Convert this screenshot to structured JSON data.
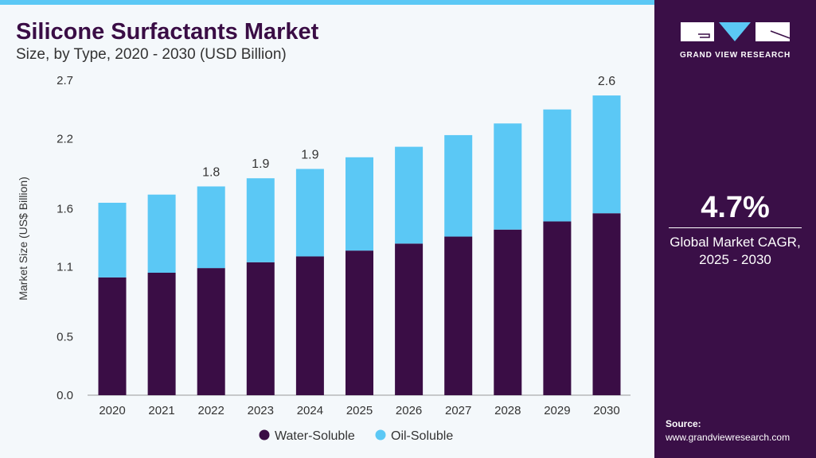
{
  "header": {
    "title": "Silicone Surfactants Market",
    "subtitle": "Size, by Type, 2020 - 2030 (USD Billion)"
  },
  "sidebar": {
    "brand": "GRAND VIEW RESEARCH",
    "cagr_value": "4.7%",
    "cagr_label_1": "Global Market CAGR,",
    "cagr_label_2": "2025 - 2030",
    "source_label": "Source:",
    "source_url": "www.grandviewresearch.com"
  },
  "colors": {
    "water_soluble": "#3a0d45",
    "oil_soluble": "#5bc8f5",
    "panel": "#3a0f47"
  },
  "chart_data": {
    "type": "bar",
    "stacked": true,
    "title": "Silicone Surfactants Market",
    "ylabel": "Market Size (US$ Billion)",
    "xlabel": "",
    "ylim": [
      0,
      2.7
    ],
    "yticks": [
      "0.0",
      "0.5",
      "1.1",
      "1.6",
      "2.2",
      "2.7"
    ],
    "categories": [
      "2020",
      "2021",
      "2022",
      "2023",
      "2024",
      "2025",
      "2026",
      "2027",
      "2028",
      "2029",
      "2030"
    ],
    "series": [
      {
        "name": "Water-Soluble",
        "values": [
          1.01,
          1.05,
          1.09,
          1.14,
          1.19,
          1.24,
          1.3,
          1.36,
          1.42,
          1.49,
          1.56
        ]
      },
      {
        "name": "Oil-Soluble",
        "values": [
          0.64,
          0.67,
          0.7,
          0.72,
          0.75,
          0.8,
          0.83,
          0.87,
          0.91,
          0.96,
          1.01
        ]
      }
    ],
    "data_labels": {
      "2022": "1.8",
      "2023": "1.9",
      "2024": "1.9",
      "2030": "2.6"
    },
    "legend": "bottom",
    "grid": false
  }
}
